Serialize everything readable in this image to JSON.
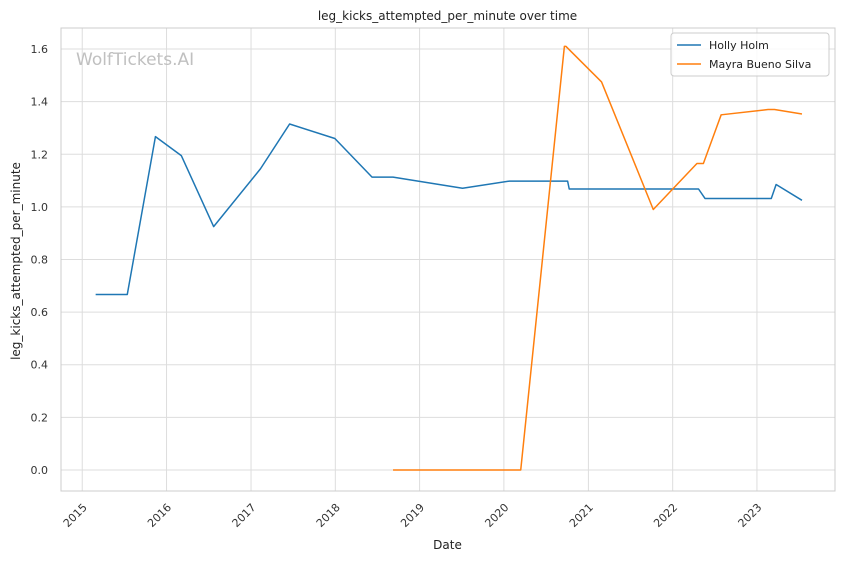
{
  "chart_data": {
    "type": "line",
    "title": "leg_kicks_attempted_per_minute over time",
    "xlabel": "Date",
    "ylabel": "leg_kicks_attempted_per_minute",
    "watermark": "WolfTickets.AI",
    "xlim": [
      "2014-10-01",
      "2023-12-05"
    ],
    "ylim": [
      -0.08,
      1.68
    ],
    "x_ticks": [
      "2015",
      "2016",
      "2017",
      "2018",
      "2019",
      "2020",
      "2021",
      "2022",
      "2023"
    ],
    "y_ticks": [
      "0.0",
      "0.2",
      "0.4",
      "0.6",
      "0.8",
      "1.0",
      "1.2",
      "1.4",
      "1.6"
    ],
    "y_tick_values": [
      0.0,
      0.2,
      0.4,
      0.6,
      0.8,
      1.0,
      1.2,
      1.4,
      1.6
    ],
    "grid": true,
    "legend_position": "top-right",
    "series": [
      {
        "name": "Holly Holm",
        "color": "#1f77b4",
        "points": [
          [
            "2015-02-28",
            0.667
          ],
          [
            "2015-07-15",
            0.667
          ],
          [
            "2015-11-14",
            1.267
          ],
          [
            "2016-03-05",
            1.195
          ],
          [
            "2016-07-23",
            0.925
          ],
          [
            "2017-02-11",
            1.145
          ],
          [
            "2017-06-17",
            1.315
          ],
          [
            "2017-12-30",
            1.26
          ],
          [
            "2018-06-09",
            1.113
          ],
          [
            "2018-09-08",
            1.113
          ],
          [
            "2019-07-06",
            1.071
          ],
          [
            "2020-01-25",
            1.098
          ],
          [
            "2020-10-03",
            1.098
          ],
          [
            "2020-10-10",
            1.068
          ],
          [
            "2022-04-23",
            1.068
          ],
          [
            "2022-05-21",
            1.032
          ],
          [
            "2023-03-04",
            1.032
          ],
          [
            "2023-03-25",
            1.085
          ],
          [
            "2023-07-15",
            1.025
          ]
        ]
      },
      {
        "name": "Mayra Bueno Silva",
        "color": "#ff7f0e",
        "points": [
          [
            "2018-09-08",
            0.0
          ],
          [
            "2020-03-14",
            0.0
          ],
          [
            "2020-09-19",
            1.61
          ],
          [
            "2020-09-26",
            1.61
          ],
          [
            "2021-02-27",
            1.475
          ],
          [
            "2021-10-09",
            0.99
          ],
          [
            "2022-04-16",
            1.165
          ],
          [
            "2022-05-14",
            1.165
          ],
          [
            "2022-07-30",
            1.35
          ],
          [
            "2023-02-18",
            1.37
          ],
          [
            "2023-03-18",
            1.37
          ],
          [
            "2023-07-15",
            1.353
          ]
        ]
      }
    ]
  }
}
